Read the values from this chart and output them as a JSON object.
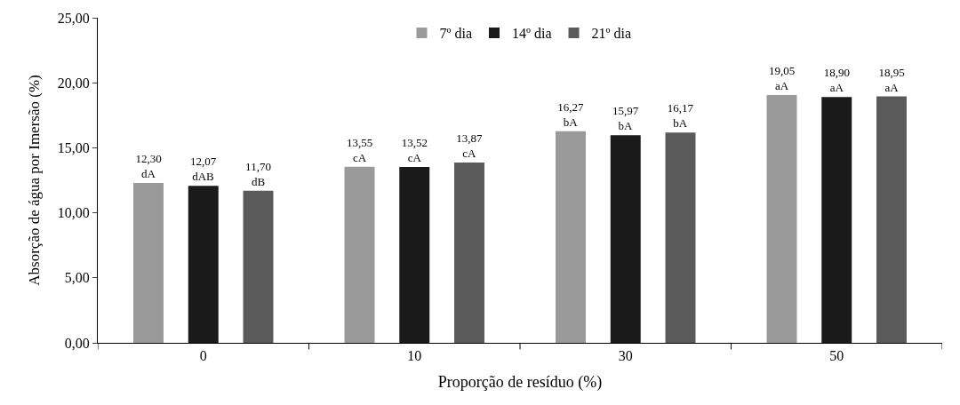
{
  "chart_data": {
    "type": "bar",
    "xlabel": "Proporção de resíduo (%)",
    "ylabel": "Absorção de água por Imersão (%)",
    "categories": [
      "0",
      "10",
      "30",
      "50"
    ],
    "series": [
      {
        "name": "7º dia",
        "color": "#9a9a9a",
        "values": [
          12.3,
          13.55,
          16.27,
          19.05
        ],
        "value_labels": [
          "12,30\ndA",
          "13,55\ncA",
          "16,27\nbA",
          "19,05\naA"
        ]
      },
      {
        "name": "14º dia",
        "color": "#1a1a1a",
        "values": [
          12.07,
          13.52,
          15.97,
          18.9
        ],
        "value_labels": [
          "12,07\ndAB",
          "13,52\ncA",
          "15,97\nbA",
          "18,90\naA"
        ]
      },
      {
        "name": "21º dia",
        "color": "#5a5a5a",
        "values": [
          11.7,
          13.87,
          16.17,
          18.95
        ],
        "value_labels": [
          "11,70\ndB",
          "13,87\ncA",
          "16,17\nbA",
          "18,95\naA"
        ]
      }
    ],
    "ylim": [
      0,
      25
    ],
    "yticks": [
      {
        "value": 0,
        "label": "0,00"
      },
      {
        "value": 5,
        "label": "5,00"
      },
      {
        "value": 10,
        "label": "10,00"
      },
      {
        "value": 15,
        "label": "15,00"
      },
      {
        "value": 20,
        "label": "20,00"
      },
      {
        "value": 25,
        "label": "25,00"
      }
    ],
    "legend": "top"
  }
}
